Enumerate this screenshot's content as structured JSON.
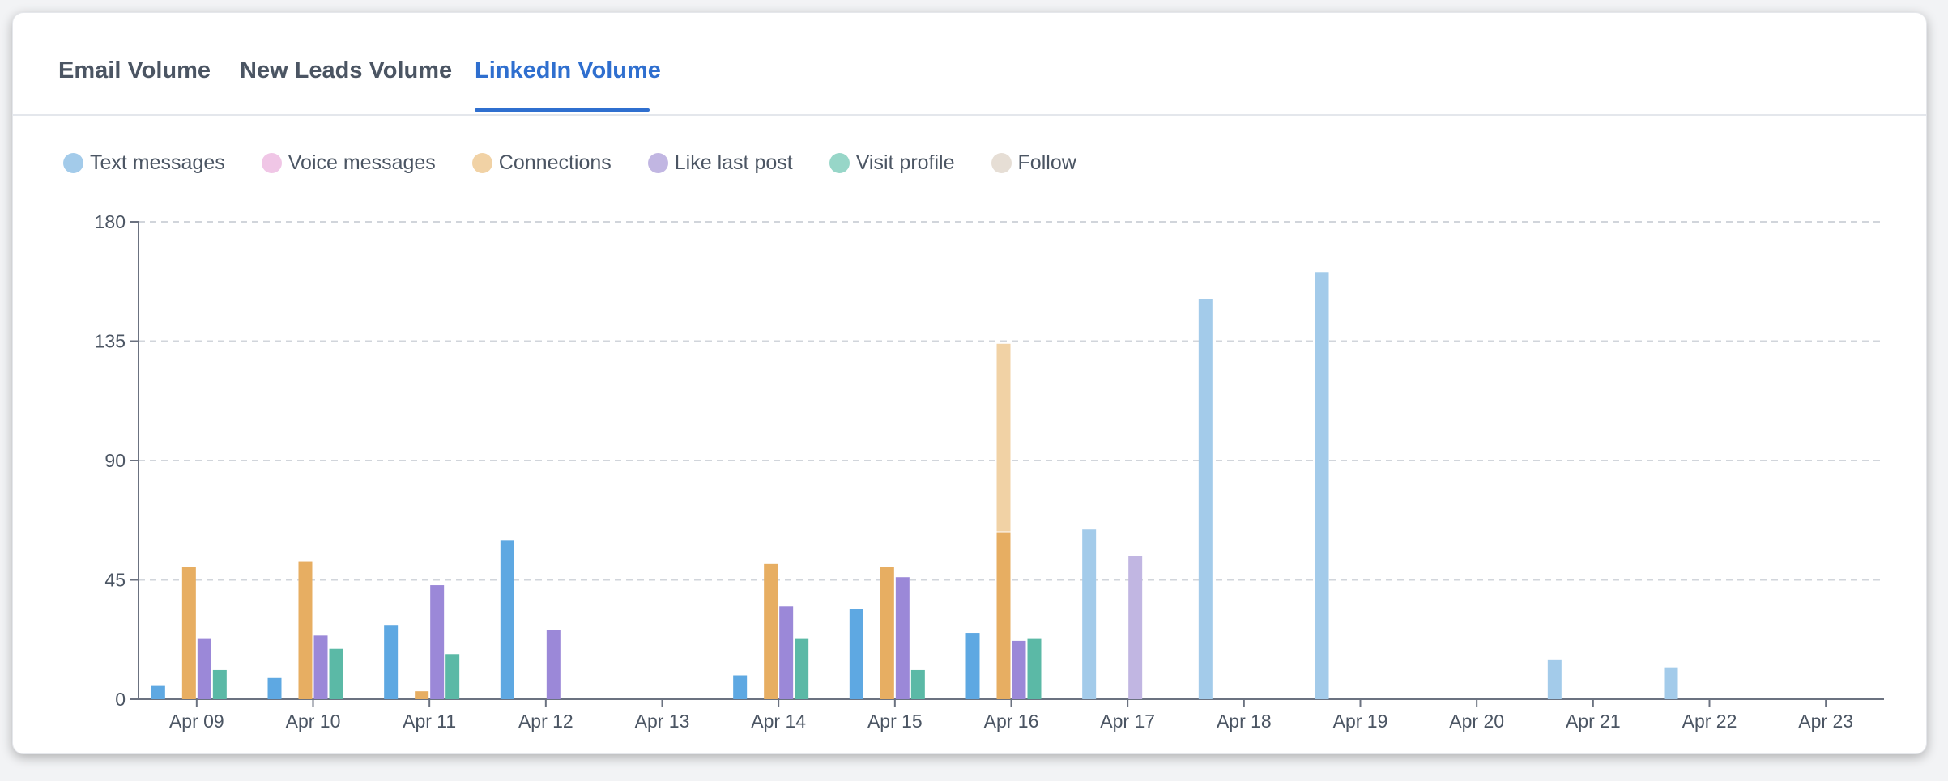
{
  "tabs": [
    {
      "label": "Email Volume",
      "active": false
    },
    {
      "label": "New Leads Volume",
      "active": false
    },
    {
      "label": "LinkedIn Volume",
      "active": true
    }
  ],
  "chart_data": {
    "type": "bar",
    "title": "",
    "xlabel": "",
    "ylabel": "",
    "ylim": [
      0,
      180
    ],
    "yticks": [
      0,
      45,
      90,
      135,
      180
    ],
    "grid": true,
    "legend_position": "top-left",
    "categories": [
      "Apr 09",
      "Apr 10",
      "Apr 11",
      "Apr 12",
      "Apr 13",
      "Apr 14",
      "Apr 15",
      "Apr 16",
      "Apr 17",
      "Apr 18",
      "Apr 19",
      "Apr 20",
      "Apr 21",
      "Apr 22",
      "Apr 23"
    ],
    "series": [
      {
        "name": "Text messages",
        "color": "#5ea8e2",
        "light_color": "#a3cbea",
        "values": [
          5,
          8,
          28,
          60,
          0,
          9,
          34,
          25,
          64,
          151,
          161,
          0,
          15,
          12,
          0
        ]
      },
      {
        "name": "Voice messages",
        "color": "#e8a8d8",
        "light_color": "#f0c6e6",
        "values": [
          0,
          0,
          0,
          0,
          0,
          0,
          0,
          0,
          0,
          0,
          0,
          0,
          0,
          0,
          0
        ]
      },
      {
        "name": "Connections",
        "color": "#e7ae62",
        "light_color": "#f1d2a5",
        "values": [
          50,
          52,
          3,
          0,
          0,
          51,
          50,
          63,
          0,
          0,
          0,
          0,
          0,
          0,
          0
        ]
      },
      {
        "name": "Like last post",
        "color": "#9b88d8",
        "light_color": "#c1b6e2",
        "values": [
          23,
          24,
          43,
          26,
          0,
          35,
          46,
          22,
          54,
          0,
          0,
          0,
          0,
          0,
          0
        ]
      },
      {
        "name": "Visit profile",
        "color": "#5bb9a6",
        "light_color": "#97d6c8",
        "values": [
          11,
          19,
          17,
          0,
          0,
          23,
          11,
          23,
          0,
          0,
          0,
          0,
          0,
          0,
          0
        ]
      },
      {
        "name": "Follow",
        "color": "#d7cbbf",
        "light_color": "#e6ded5",
        "values": [
          0,
          0,
          0,
          0,
          0,
          0,
          0,
          0,
          0,
          0,
          0,
          0,
          0,
          0,
          0
        ]
      }
    ],
    "stacked_extra": [
      {
        "category": "Apr 16",
        "series": "Connections",
        "value": 71
      }
    ]
  }
}
